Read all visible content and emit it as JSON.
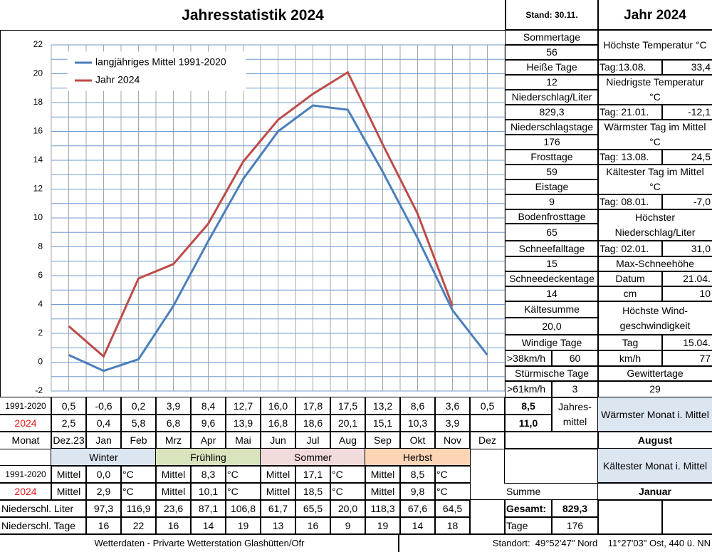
{
  "header": {
    "title": "Jahresstatistik 2024",
    "stand": "Stand: 30.11.",
    "year": "Jahr 2024"
  },
  "chart_data": {
    "type": "line",
    "categories": [
      "Dez.23",
      "Jan",
      "Feb",
      "Mrz",
      "Apr",
      "Mai",
      "Jun",
      "Jul",
      "Aug",
      "Sep",
      "Okt",
      "Nov",
      "Dez"
    ],
    "series": [
      {
        "name": "langjähriges Mittel 1991-2020",
        "color": "#4a7ebb",
        "values": [
          0.5,
          -0.6,
          0.2,
          3.9,
          8.4,
          12.7,
          16.0,
          17.8,
          17.5,
          13.2,
          8.6,
          3.6,
          0.5
        ],
        "value_labels": [
          "0,5",
          "-0,6",
          "0,2",
          "3,9",
          "8,4",
          "12,7",
          "16,0",
          "17,8",
          "17,5",
          "13,2",
          "8,6",
          "3,6",
          "0,5"
        ]
      },
      {
        "name": "Jahr 2024",
        "color": "#be4b48",
        "values": [
          2.5,
          0.4,
          5.8,
          6.8,
          9.6,
          13.9,
          16.8,
          18.6,
          20.1,
          15.1,
          10.3,
          3.9,
          null
        ],
        "value_labels": [
          "2,5",
          "0,4",
          "5,8",
          "6,8",
          "9,6",
          "13,9",
          "16,8",
          "18,6",
          "20,1",
          "15,1",
          "10,3",
          "3,9",
          null
        ]
      }
    ],
    "ylim": [
      -2,
      22
    ],
    "yticks": [
      -2,
      0,
      2,
      4,
      6,
      8,
      10,
      12,
      14,
      16,
      18,
      20,
      22
    ],
    "grid": true,
    "legend": "upper left"
  },
  "monthly": {
    "row_labels": [
      "1991-2020",
      "2024",
      "Monat"
    ],
    "annual": [
      "8,5",
      "11,0"
    ],
    "annual_label": "Jahres-mittel",
    "warmest_label": "Wärmster Monat i. Mittel",
    "warmest": "August"
  },
  "seasons": {
    "names": [
      "Winter",
      "Frühling",
      "Sommer",
      "Herbst"
    ],
    "row_labels": [
      "1991-2020",
      "2024"
    ],
    "unit_label": "Mittel",
    "unit": "°C",
    "mean": [
      "0,0",
      "8,3",
      "17,1",
      "8,5"
    ],
    "year": [
      "2,9",
      "10,1",
      "18,5",
      "9,8"
    ],
    "coldest_label": "Kältester Monat i. Mittel",
    "coldest": "Januar",
    "sum_label": "Summe"
  },
  "precip": {
    "liter_label": "Niederschl. Liter",
    "liters": [
      "97,3",
      "116,9",
      "23,6",
      "87,1",
      "106,8",
      "61,7",
      "65,5",
      "20,0",
      "118,3",
      "67,6",
      "64,5"
    ],
    "days_label": "Niederschl. Tage",
    "days": [
      "16",
      "22",
      "16",
      "14",
      "19",
      "13",
      "16",
      "9",
      "19",
      "14",
      "18"
    ],
    "total_label": "Gesamt:",
    "total": "829,3",
    "days_total_label": "Tage",
    "days_total": "176"
  },
  "stats_left": [
    {
      "label": "Sommertage",
      "value": "56"
    },
    {
      "label": "Heiße Tage",
      "value": "12"
    },
    {
      "label": "Niederschlag/Liter",
      "value": "829,3"
    },
    {
      "label": "Niederschlagstage",
      "value": "176"
    },
    {
      "label": "Frosttage",
      "value": "59"
    },
    {
      "label": "Eistage",
      "value": "9"
    },
    {
      "label": "Bodenfrosttage",
      "value": "65"
    },
    {
      "label": "Schneefalltage",
      "value": "15"
    },
    {
      "label": "Schneedeckentage",
      "value": "14"
    },
    {
      "label": "Kältesumme",
      "value": "20,0"
    }
  ],
  "wind": [
    {
      "label": "Windige Tage",
      "unit": ">38km/h",
      "value": "60"
    },
    {
      "label": "Stürmische Tage",
      "unit": ">61km/h",
      "value": "3"
    }
  ],
  "stats_right": [
    {
      "label": "Höchste Temperatur °C",
      "day": "Tag:13.08.",
      "value": "33,4"
    },
    {
      "label": "Niedrigste Temperatur °C",
      "day": "Tag: 21.01.",
      "value": "-12,1"
    },
    {
      "label": "Wärmster Tag im Mittel °C",
      "day": "Tag: 13.08.",
      "value": "24,5"
    },
    {
      "label": "Kältester Tag im Mittel °C",
      "day": "Tag: 08.01.",
      "value": "-7,0"
    },
    {
      "label": "Höchster Niederschlag/Liter",
      "day": "Tag: 02.01.",
      "value": "31,0"
    }
  ],
  "snow": {
    "label": "Max-Schneehöhe",
    "date_label": "Datum",
    "date": "21.04.",
    "unit": "cm",
    "value": "10"
  },
  "wind_max": {
    "label": "Höchste Wind-geschwindigkeit",
    "day_label": "Tag",
    "day": "15.04.",
    "unit": "km/h",
    "value": "77"
  },
  "thunder": {
    "label": "Gewittertage",
    "value": "29"
  },
  "footer": {
    "source": "Wetterdaten - Privarte Wetterstation Glashütten/Ofr",
    "location": "Standort:  49°52'47\" Nord    11°27'03\" Ost, 440 ü. NN"
  }
}
